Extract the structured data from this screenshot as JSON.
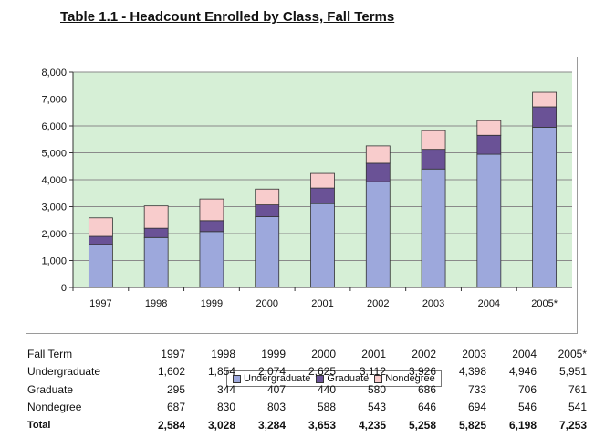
{
  "title": "Table 1.1 - Headcount Enrolled by Class, Fall Terms",
  "colors": {
    "plot_bg": "#d6efd6",
    "undergraduate": "#9da8dc",
    "graduate": "#6a5296",
    "nondegree": "#f8cccc",
    "grid": "#8a8a8a"
  },
  "chart_data": {
    "type": "bar",
    "stacked": true,
    "categories": [
      "1997",
      "1998",
      "1999",
      "2000",
      "2001",
      "2002",
      "2003",
      "2004",
      "2005*"
    ],
    "series": [
      {
        "name": "Undergraduate",
        "values": [
          1602,
          1854,
          2074,
          2625,
          3112,
          3926,
          4398,
          4946,
          5951
        ]
      },
      {
        "name": "Graduate",
        "values": [
          295,
          344,
          407,
          440,
          580,
          686,
          733,
          706,
          761
        ]
      },
      {
        "name": "Nondegree",
        "values": [
          687,
          830,
          803,
          588,
          543,
          646,
          694,
          546,
          541
        ]
      }
    ],
    "ylim": [
      0,
      8000
    ],
    "yticks": [
      "0",
      "1,000",
      "2,000",
      "3,000",
      "4,000",
      "5,000",
      "6,000",
      "7,000",
      "8,000"
    ],
    "grid": true,
    "legend_position": "bottom"
  },
  "table": {
    "header": {
      "label": "Fall Term",
      "values": [
        "1997",
        "1998",
        "1999",
        "2000",
        "2001",
        "2002",
        "2003",
        "2004",
        "2005*"
      ]
    },
    "rows": [
      {
        "label": "Undergraduate",
        "values": [
          "1,602",
          "1,854",
          "2,074",
          "2,625",
          "3,112",
          "3,926",
          "4,398",
          "4,946",
          "5,951"
        ]
      },
      {
        "label": "Graduate",
        "values": [
          "295",
          "344",
          "407",
          "440",
          "580",
          "686",
          "733",
          "706",
          "761"
        ]
      },
      {
        "label": "Nondegree",
        "values": [
          "687",
          "830",
          "803",
          "588",
          "543",
          "646",
          "694",
          "546",
          "541"
        ]
      }
    ],
    "total": {
      "label": "Total",
      "values": [
        "2,584",
        "3,028",
        "3,284",
        "3,653",
        "4,235",
        "5,258",
        "5,825",
        "6,198",
        "7,253"
      ]
    }
  }
}
